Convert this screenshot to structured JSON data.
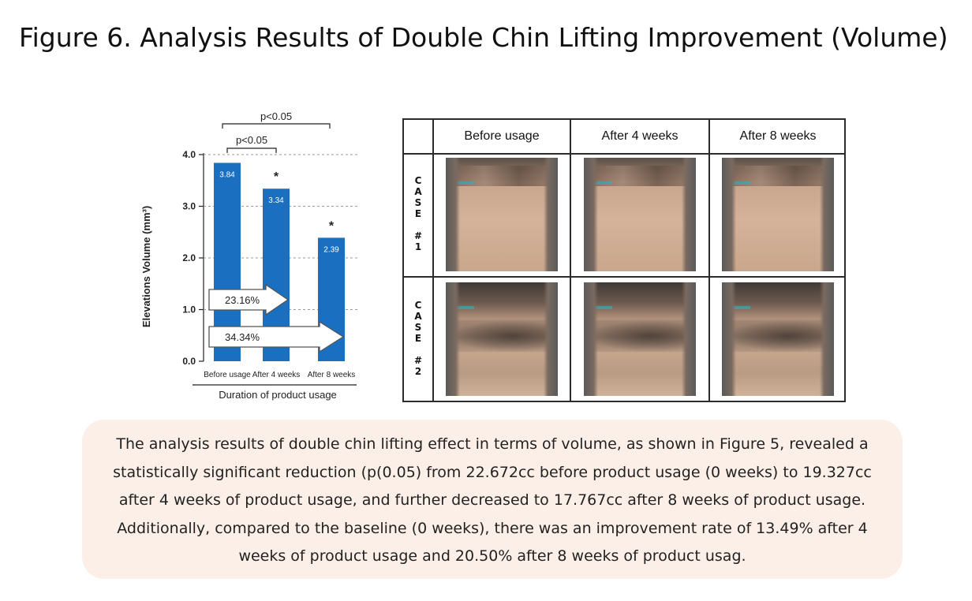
{
  "figure_title": "Figure 6. Analysis Results of Double Chin Lifting Improvement (Volume)",
  "chart_data": {
    "type": "bar",
    "categories": [
      "Before usage",
      "After 4 weeks",
      "After 8 weeks"
    ],
    "values": [
      3.84,
      3.34,
      2.39
    ],
    "value_labels": [
      "3.84",
      "3.34",
      "2.39"
    ],
    "significance_markers": [
      "",
      "*",
      "*"
    ],
    "ylabel": "Elevations Volume (mm³)",
    "xlabel": "Duration of product usage",
    "ylim": [
      0,
      4
    ],
    "yticks": [
      "0.0",
      "1.0",
      "2.0",
      "3.0",
      "4.0"
    ],
    "grid": "dashed horizontal",
    "bar_color": "#1a6fc0",
    "brackets": [
      {
        "label": "p<0.05",
        "from": "Before usage",
        "to": "After 4 weeks"
      },
      {
        "label": "p<0.05",
        "from": "Before usage",
        "to": "After 8 weeks"
      }
    ],
    "arrows": [
      {
        "label": "23.16%",
        "to": "After 4 weeks"
      },
      {
        "label": "34.34%",
        "to": "After 8 weeks"
      }
    ]
  },
  "photo_table": {
    "columns": [
      "Before usage",
      "After 4 weeks",
      "After 8 weeks"
    ],
    "rows": [
      {
        "label": [
          "C",
          "A",
          "S",
          "E",
          "",
          "#",
          "1"
        ]
      },
      {
        "label": [
          "C",
          "A",
          "S",
          "E",
          "",
          "#",
          "2"
        ]
      }
    ]
  },
  "description": [
    "The analysis results of double chin lifting effect in terms of volume, as shown in Figure 5, revealed a",
    "statistically significant reduction (p(0.05) from 22.672cc before product usage (0 weeks) to 19.327cc",
    "after 4 weeks of product usage, and further decreased to 17.767cc after 8 weeks of product usage.",
    "Additionally, compared to the baseline (0 weeks), there was an improvement rate of 13.49% after 4",
    "weeks of product usage and 20.50% after 8 weeks of product usag."
  ]
}
